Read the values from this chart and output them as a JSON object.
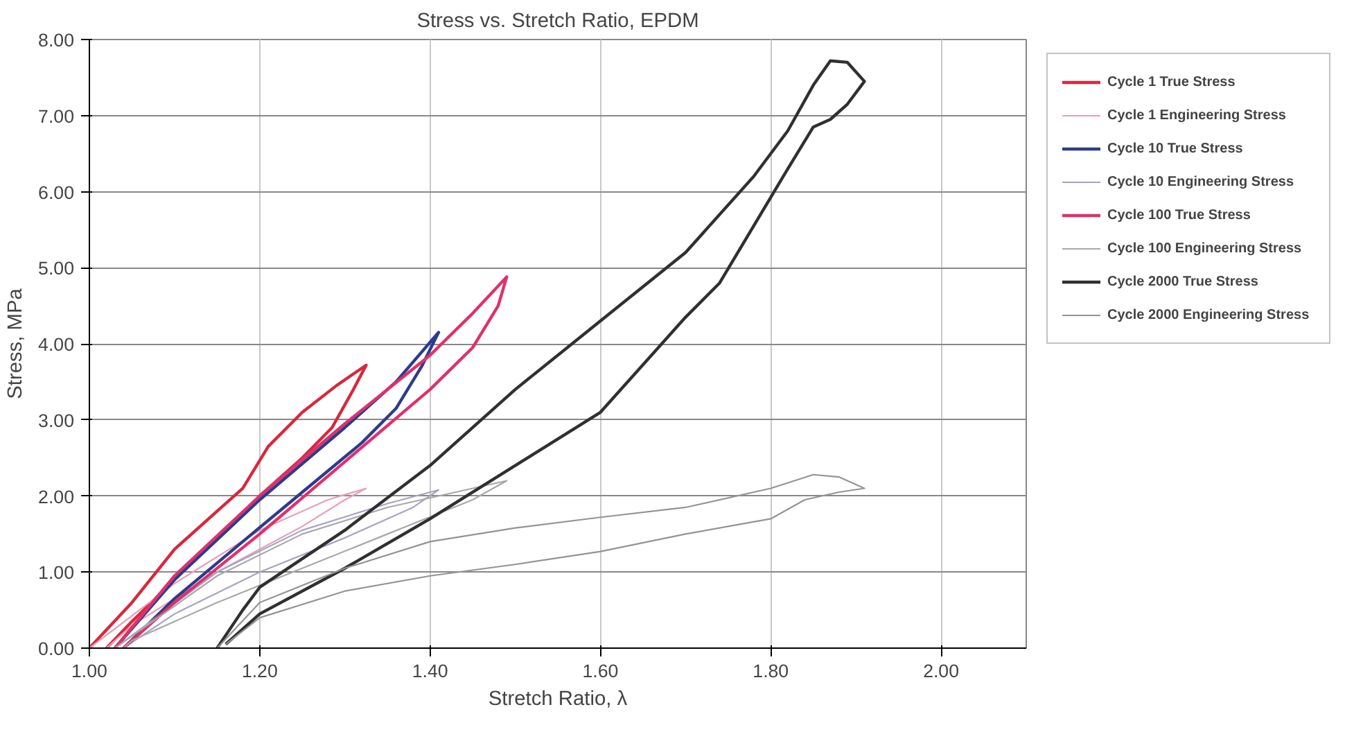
{
  "chart_data": {
    "type": "line",
    "title": "Stress vs. Stretch Ratio, EPDM",
    "xlabel": "Stretch Ratio, λ",
    "ylabel": "Stress, MPa",
    "xlim": [
      1.0,
      2.1
    ],
    "xticks": [
      {
        "value": 1.0,
        "label": "1.00"
      },
      {
        "value": 1.2,
        "label": "1.20"
      },
      {
        "value": 1.4,
        "label": "1.40"
      },
      {
        "value": 1.6,
        "label": "1.60"
      },
      {
        "value": 1.8,
        "label": "1.80"
      },
      {
        "value": 2.0,
        "label": "2.00"
      }
    ],
    "ylim": [
      0,
      8
    ],
    "yticks": [
      {
        "value": 0,
        "label": "0.00"
      },
      {
        "value": 1,
        "label": "1.00"
      },
      {
        "value": 2,
        "label": "2.00"
      },
      {
        "value": 3,
        "label": "3.00"
      },
      {
        "value": 4,
        "label": "4.00"
      },
      {
        "value": 5,
        "label": "5.00"
      },
      {
        "value": 6,
        "label": "6.00"
      },
      {
        "value": 7,
        "label": "7.00"
      },
      {
        "value": 8,
        "label": "8.00"
      }
    ],
    "grid": true,
    "legend": "right",
    "marker": "none",
    "line_style": "solid",
    "series": [
      {
        "name": "Cycle 1 True Stress",
        "color": "#d8283c",
        "x": [
          1.0,
          1.05,
          1.1,
          1.15,
          1.18,
          1.21,
          1.25,
          1.29,
          1.325,
          1.31,
          1.285,
          1.25,
          1.2,
          1.15,
          1.1,
          1.05,
          1.02
        ],
        "values": [
          0,
          0.6,
          1.3,
          1.8,
          2.1,
          2.65,
          3.1,
          3.45,
          3.72,
          3.4,
          2.9,
          2.5,
          2.0,
          1.45,
          0.9,
          0.35,
          0
        ]
      },
      {
        "name": "Cycle 1 Engineering Stress",
        "color": "#e4a0b8",
        "x": [
          1.0,
          1.1,
          1.2,
          1.28,
          1.325,
          1.3,
          1.25,
          1.15,
          1.05,
          1.02
        ],
        "values": [
          0,
          0.85,
          1.55,
          1.95,
          2.1,
          1.95,
          1.6,
          1.0,
          0.3,
          0
        ]
      },
      {
        "name": "Cycle 10 True Stress",
        "color": "#2c3c8c",
        "x": [
          1.03,
          1.1,
          1.2,
          1.3,
          1.36,
          1.41,
          1.39,
          1.36,
          1.32,
          1.25,
          1.18,
          1.1,
          1.04
        ],
        "values": [
          0,
          0.9,
          1.95,
          2.9,
          3.5,
          4.15,
          3.7,
          3.15,
          2.7,
          2.05,
          1.4,
          0.65,
          0
        ]
      },
      {
        "name": "Cycle 10 Engineering Stress",
        "color": "#a4a4c4",
        "x": [
          1.03,
          1.15,
          1.25,
          1.35,
          1.41,
          1.38,
          1.3,
          1.2,
          1.1,
          1.04
        ],
        "values": [
          0,
          1.0,
          1.55,
          1.9,
          2.08,
          1.85,
          1.45,
          1.0,
          0.45,
          0
        ]
      },
      {
        "name": "Cycle 100 True Stress",
        "color": "#e0306c",
        "x": [
          1.03,
          1.1,
          1.2,
          1.3,
          1.4,
          1.45,
          1.49,
          1.48,
          1.45,
          1.4,
          1.3,
          1.2,
          1.1,
          1.04
        ],
        "values": [
          0,
          0.95,
          2.0,
          2.95,
          3.85,
          4.4,
          4.88,
          4.5,
          3.95,
          3.4,
          2.45,
          1.5,
          0.6,
          0
        ]
      },
      {
        "name": "Cycle 100 Engineering Stress",
        "color": "#a8a8a8",
        "x": [
          1.03,
          1.15,
          1.25,
          1.35,
          1.45,
          1.49,
          1.45,
          1.35,
          1.25,
          1.15,
          1.05,
          1.04
        ],
        "values": [
          0,
          0.95,
          1.5,
          1.85,
          2.1,
          2.2,
          1.95,
          1.5,
          1.05,
          0.6,
          0.1,
          0
        ]
      },
      {
        "name": "Cycle 2000 True Stress",
        "color": "#303030",
        "x": [
          1.15,
          1.18,
          1.2,
          1.3,
          1.4,
          1.5,
          1.6,
          1.7,
          1.78,
          1.82,
          1.85,
          1.87,
          1.89,
          1.91,
          1.89,
          1.87,
          1.85,
          1.82,
          1.78,
          1.74,
          1.7,
          1.6,
          1.5,
          1.4,
          1.3,
          1.2,
          1.16
        ],
        "values": [
          0,
          0.5,
          0.8,
          1.55,
          2.4,
          3.4,
          4.3,
          5.2,
          6.2,
          6.8,
          7.4,
          7.72,
          7.7,
          7.45,
          7.15,
          6.95,
          6.85,
          6.3,
          5.55,
          4.8,
          4.35,
          3.1,
          2.4,
          1.7,
          1.05,
          0.45,
          0.05
        ]
      },
      {
        "name": "Cycle 2000 Engineering Stress",
        "color": "#949494",
        "x": [
          1.15,
          1.2,
          1.3,
          1.4,
          1.5,
          1.6,
          1.7,
          1.8,
          1.85,
          1.88,
          1.91,
          1.88,
          1.84,
          1.8,
          1.7,
          1.6,
          1.5,
          1.4,
          1.3,
          1.2,
          1.16
        ],
        "values": [
          0,
          0.6,
          1.05,
          1.4,
          1.58,
          1.72,
          1.85,
          2.1,
          2.28,
          2.25,
          2.1,
          2.05,
          1.95,
          1.7,
          1.5,
          1.27,
          1.1,
          0.95,
          0.75,
          0.4,
          0.05
        ]
      }
    ]
  }
}
